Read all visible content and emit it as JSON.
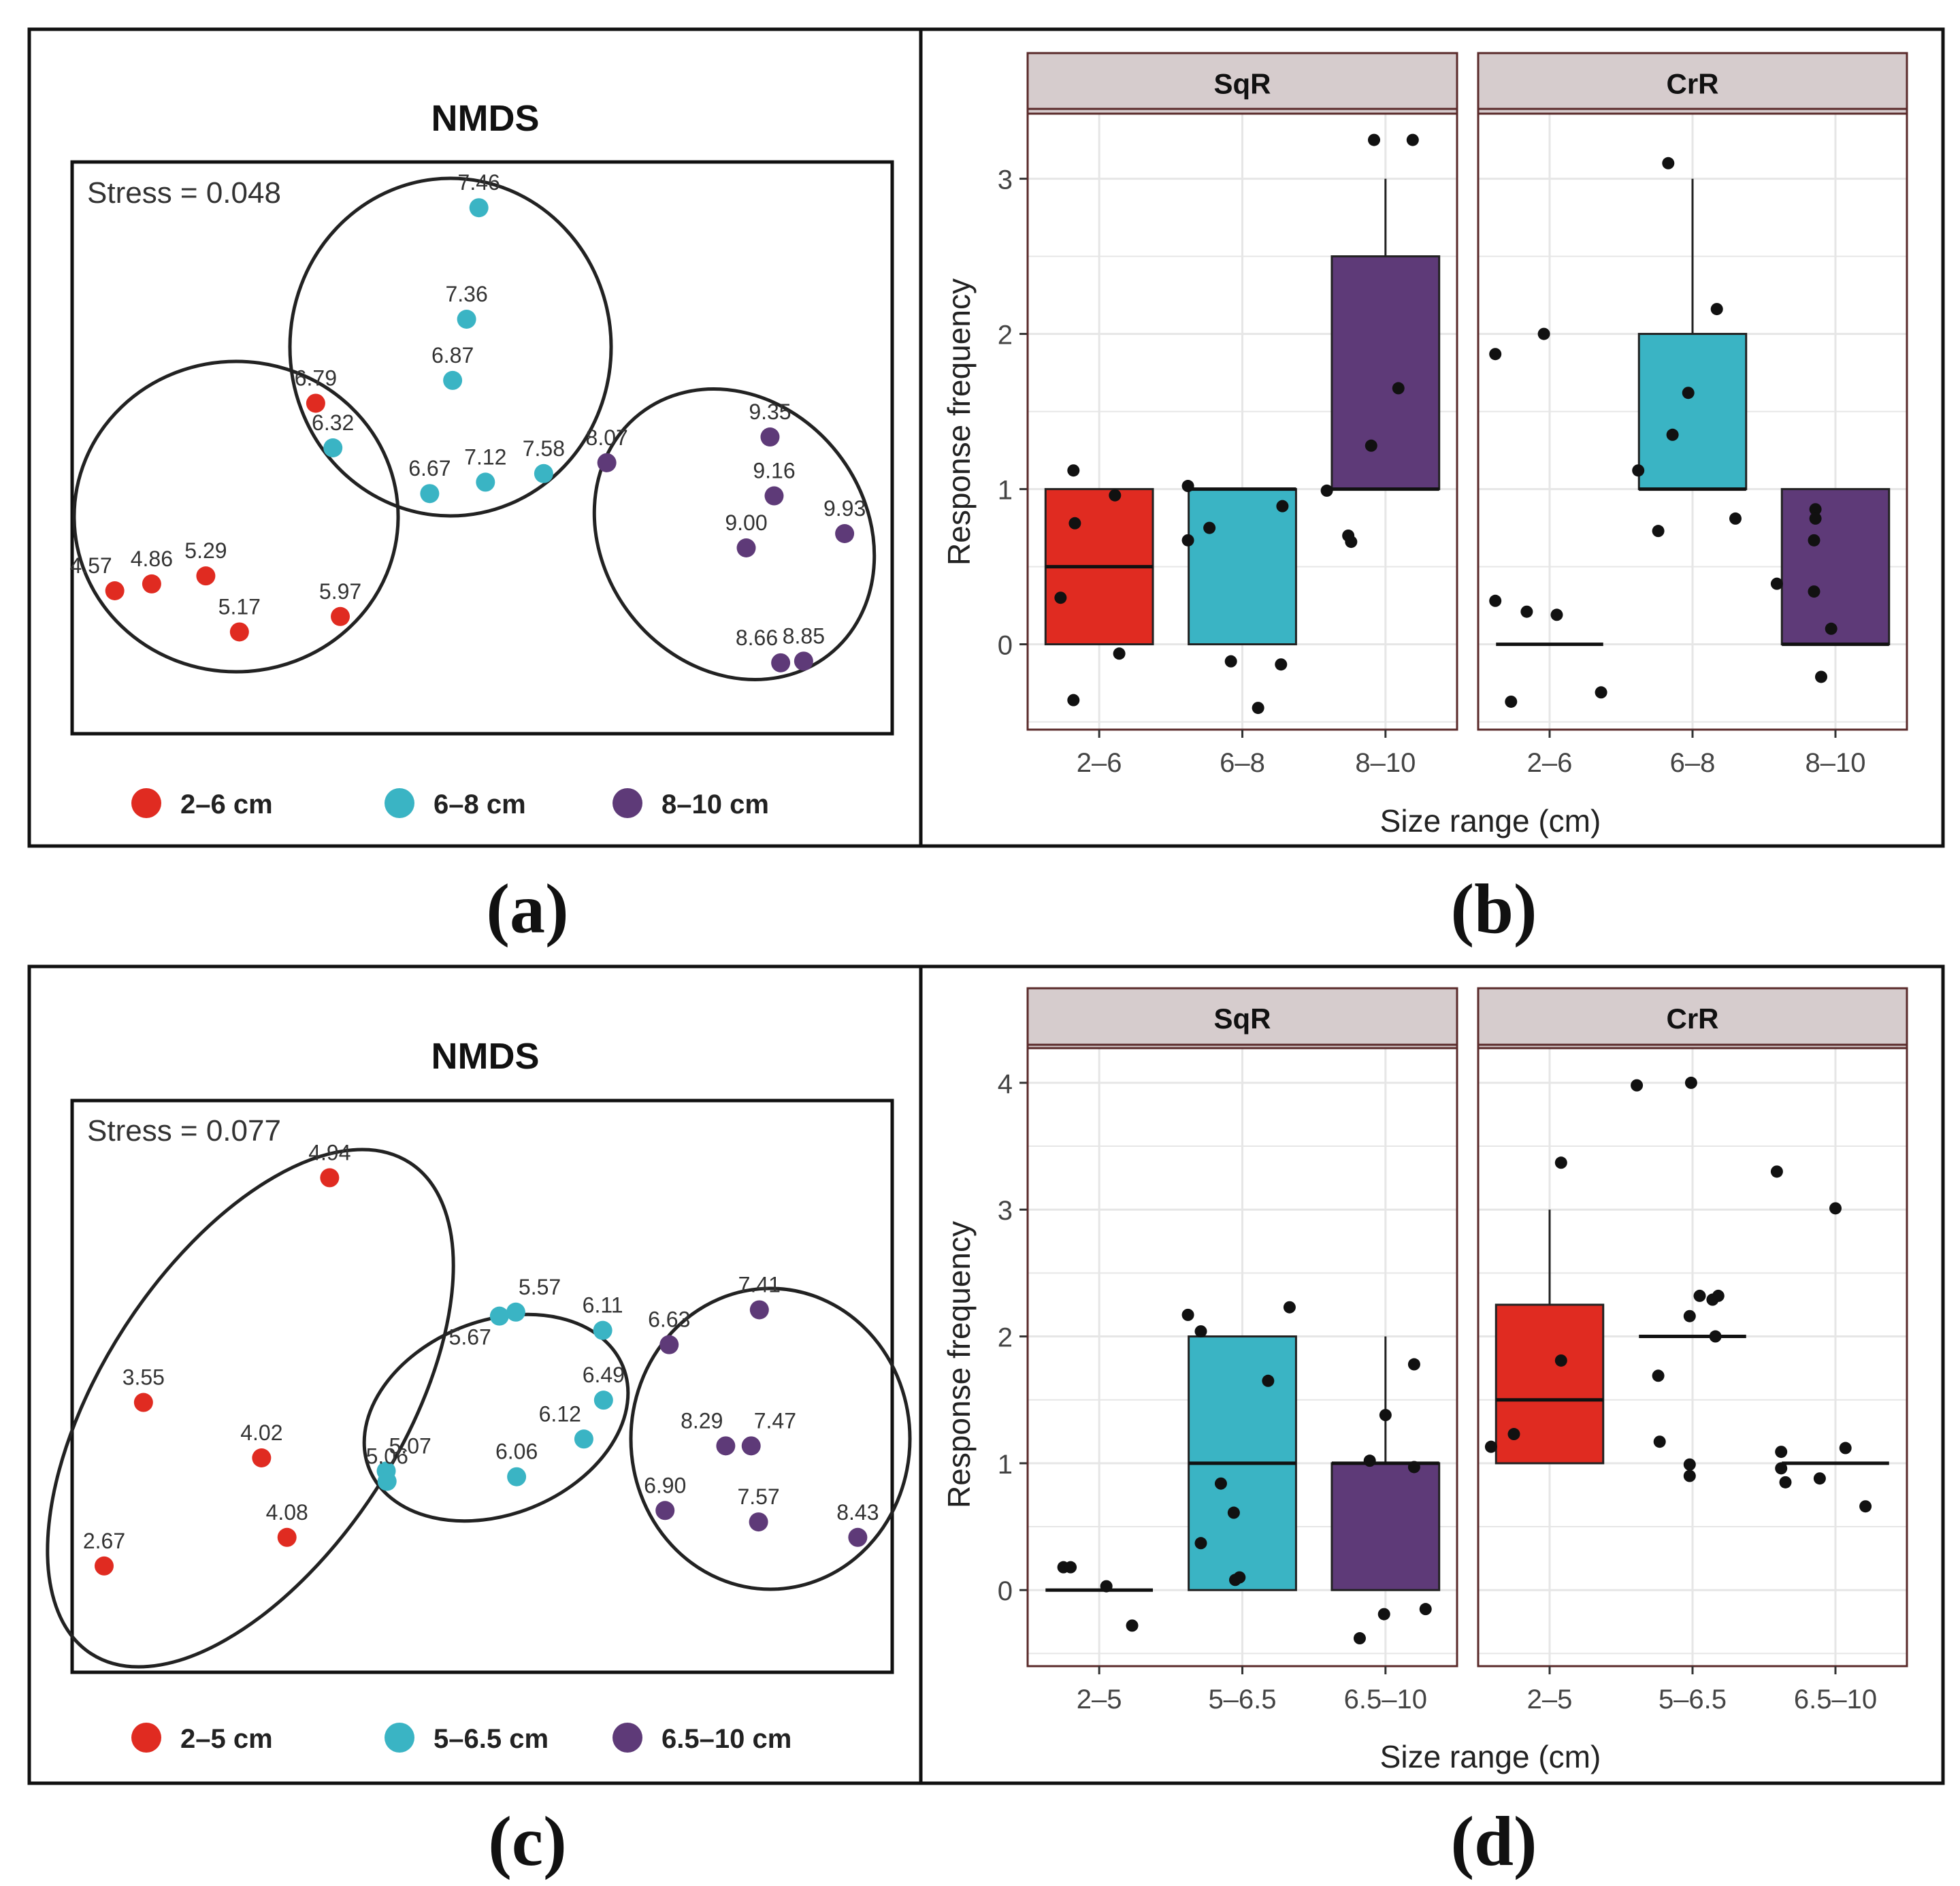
{
  "colors": {
    "red": "#e02b21",
    "cyan": "#3ab4c4",
    "purple": "#5e3a78",
    "strip": "#d6cccd",
    "strip_border": "#5a2a2a",
    "grid": "#e6e6e6",
    "axis": "#333333"
  },
  "panels": [
    {
      "key": "a",
      "caption": "(a)"
    },
    {
      "key": "b",
      "caption": "(b)"
    },
    {
      "key": "c",
      "caption": "(c)"
    },
    {
      "key": "d",
      "caption": "(d)"
    }
  ],
  "chart_data": [
    {
      "panel": "a",
      "type": "scatter",
      "title": "NMDS",
      "stress": "Stress = 0.048",
      "legend": [
        {
          "label": "2–6 cm",
          "color": "red"
        },
        {
          "label": "6–8 cm",
          "color": "cyan"
        },
        {
          "label": "8–10 cm",
          "color": "purple"
        }
      ],
      "points": [
        {
          "label": "4.57",
          "x": 0.052,
          "y": 0.25,
          "color": "red",
          "lpos": "tl"
        },
        {
          "label": "4.86",
          "x": 0.097,
          "y": 0.262,
          "color": "red",
          "lpos": "t"
        },
        {
          "label": "5.29",
          "x": 0.163,
          "y": 0.276,
          "color": "red",
          "lpos": "t"
        },
        {
          "label": "5.17",
          "x": 0.204,
          "y": 0.178,
          "color": "red",
          "lpos": "t"
        },
        {
          "label": "5.97",
          "x": 0.327,
          "y": 0.205,
          "color": "red",
          "lpos": "t"
        },
        {
          "label": "6.79",
          "x": 0.297,
          "y": 0.578,
          "color": "red",
          "lpos": "t"
        },
        {
          "label": "6.32",
          "x": 0.318,
          "y": 0.5,
          "color": "cyan",
          "lpos": "t"
        },
        {
          "label": "7.46",
          "x": 0.496,
          "y": 0.92,
          "color": "cyan",
          "lpos": "t"
        },
        {
          "label": "7.36",
          "x": 0.481,
          "y": 0.725,
          "color": "cyan",
          "lpos": "t"
        },
        {
          "label": "6.87",
          "x": 0.464,
          "y": 0.618,
          "color": "cyan",
          "lpos": "t"
        },
        {
          "label": "6.67",
          "x": 0.436,
          "y": 0.42,
          "color": "cyan",
          "lpos": "t"
        },
        {
          "label": "7.12",
          "x": 0.504,
          "y": 0.44,
          "color": "cyan",
          "lpos": "t"
        },
        {
          "label": "7.58",
          "x": 0.575,
          "y": 0.455,
          "color": "cyan",
          "lpos": "t"
        },
        {
          "label": "8.07",
          "x": 0.652,
          "y": 0.474,
          "color": "purple",
          "lpos": "t"
        },
        {
          "label": "9.35",
          "x": 0.851,
          "y": 0.519,
          "color": "purple",
          "lpos": "t"
        },
        {
          "label": "9.16",
          "x": 0.856,
          "y": 0.416,
          "color": "purple",
          "lpos": "t"
        },
        {
          "label": "9.00",
          "x": 0.822,
          "y": 0.325,
          "color": "purple",
          "lpos": "t"
        },
        {
          "label": "9.93",
          "x": 0.942,
          "y": 0.35,
          "color": "purple",
          "lpos": "t"
        },
        {
          "label": "8.66",
          "x": 0.864,
          "y": 0.124,
          "color": "purple",
          "lpos": "tl"
        },
        {
          "label": "8.85",
          "x": 0.892,
          "y": 0.127,
          "color": "purple",
          "lpos": "t"
        }
      ]
    },
    {
      "panel": "b",
      "type": "box",
      "ylabel": "Response frequency",
      "xlabel": "Size range (cm)",
      "ylim": [
        -0.55,
        3.45
      ],
      "yticks": [
        0,
        1,
        2,
        3
      ],
      "facets": [
        {
          "name": "SqR",
          "categories": [
            "2–6",
            "6–8",
            "8–10"
          ],
          "boxes": [
            {
              "q1": 0,
              "median": 0.5,
              "q3": 1,
              "whisker_low": 0,
              "whisker_high": 1,
              "color": "red"
            },
            {
              "q1": 0,
              "median": 1,
              "q3": 1,
              "whisker_low": 0,
              "whisker_high": 1,
              "color": "cyan"
            },
            {
              "q1": 1,
              "median": 1,
              "q3": 2.5,
              "whisker_low": 1,
              "whisker_high": 3,
              "color": "purple"
            }
          ],
          "points": [
            [
              [
                -0.18,
                1.12
              ],
              [
                -0.17,
                0.78
              ],
              [
                0.11,
                0.96
              ],
              [
                -0.27,
                0.3
              ],
              [
                0.14,
                -0.06
              ],
              [
                -0.18,
                -0.36
              ]
            ],
            [
              [
                -0.38,
                1.02
              ],
              [
                -0.38,
                0.67
              ],
              [
                -0.23,
                0.75
              ],
              [
                0.28,
                0.89
              ],
              [
                -0.08,
                -0.11
              ],
              [
                0.27,
                -0.13
              ],
              [
                0.11,
                -0.41
              ]
            ],
            [
              [
                -0.41,
                0.99
              ],
              [
                -0.26,
                0.7
              ],
              [
                -0.24,
                0.66
              ],
              [
                -0.1,
                1.28
              ],
              [
                0.09,
                1.65
              ],
              [
                -0.08,
                3.25
              ],
              [
                0.19,
                3.25
              ]
            ]
          ]
        },
        {
          "name": "CrR",
          "categories": [
            "2–6",
            "6–8",
            "8–10"
          ],
          "boxes": [
            {
              "q1": 0,
              "median": 0,
              "q3": 0,
              "whisker_low": 0,
              "whisker_high": 0,
              "color": "red"
            },
            {
              "q1": 1,
              "median": 1,
              "q3": 2,
              "whisker_low": 1,
              "whisker_high": 3,
              "color": "cyan"
            },
            {
              "q1": 0,
              "median": 0,
              "q3": 1,
              "whisker_low": 0,
              "whisker_high": 1,
              "color": "purple"
            }
          ],
          "points": [
            [
              [
                -0.38,
                1.87
              ],
              [
                -0.04,
                2.0
              ],
              [
                -0.38,
                0.28
              ],
              [
                -0.16,
                0.21
              ],
              [
                0.05,
                0.19
              ],
              [
                -0.27,
                -0.37
              ],
              [
                0.36,
                -0.31
              ]
            ],
            [
              [
                -0.38,
                1.12
              ],
              [
                -0.17,
                3.1
              ],
              [
                0.17,
                2.16
              ],
              [
                -0.03,
                1.62
              ],
              [
                -0.14,
                1.35
              ],
              [
                -0.24,
                0.73
              ],
              [
                0.3,
                0.81
              ]
            ],
            [
              [
                -0.41,
                0.39
              ],
              [
                -0.14,
                0.87
              ],
              [
                -0.14,
                0.81
              ],
              [
                -0.15,
                0.67
              ],
              [
                -0.15,
                0.34
              ],
              [
                -0.03,
                0.1
              ],
              [
                -0.1,
                -0.21
              ]
            ]
          ]
        }
      ]
    },
    {
      "panel": "c",
      "type": "scatter",
      "title": "NMDS",
      "stress": "Stress = 0.077",
      "legend": [
        {
          "label": "2–5 cm",
          "color": "red"
        },
        {
          "label": "5–6.5 cm",
          "color": "cyan"
        },
        {
          "label": "6.5–10 cm",
          "color": "purple"
        }
      ],
      "points": [
        {
          "label": "4.94",
          "x": 0.314,
          "y": 0.865,
          "color": "red",
          "lpos": "t"
        },
        {
          "label": "3.55",
          "x": 0.087,
          "y": 0.472,
          "color": "red",
          "lpos": "t"
        },
        {
          "label": "4.02",
          "x": 0.231,
          "y": 0.375,
          "color": "red",
          "lpos": "t"
        },
        {
          "label": "4.08",
          "x": 0.262,
          "y": 0.236,
          "color": "red",
          "lpos": "t"
        },
        {
          "label": "2.67",
          "x": 0.039,
          "y": 0.186,
          "color": "red",
          "lpos": "t"
        },
        {
          "label": "5.57",
          "x": 0.541,
          "y": 0.63,
          "color": "cyan",
          "lpos": "tr"
        },
        {
          "label": "5.67",
          "x": 0.521,
          "y": 0.623,
          "color": "cyan",
          "lpos": "bl"
        },
        {
          "label": "6.11",
          "x": 0.647,
          "y": 0.598,
          "color": "cyan",
          "lpos": "t"
        },
        {
          "label": "6.49",
          "x": 0.648,
          "y": 0.476,
          "color": "cyan",
          "lpos": "t"
        },
        {
          "label": "6.12",
          "x": 0.624,
          "y": 0.408,
          "color": "cyan",
          "lpos": "tl"
        },
        {
          "label": "6.06",
          "x": 0.542,
          "y": 0.342,
          "color": "cyan",
          "lpos": "t"
        },
        {
          "label": "5.07",
          "x": 0.383,
          "y": 0.352,
          "color": "cyan",
          "lpos": "tr"
        },
        {
          "label": "5.06",
          "x": 0.384,
          "y": 0.334,
          "color": "cyan",
          "lpos": "t"
        },
        {
          "label": "6.63",
          "x": 0.728,
          "y": 0.573,
          "color": "purple",
          "lpos": "t"
        },
        {
          "label": "7.41",
          "x": 0.838,
          "y": 0.634,
          "color": "purple",
          "lpos": "t"
        },
        {
          "label": "8.29",
          "x": 0.797,
          "y": 0.396,
          "color": "purple",
          "lpos": "tl"
        },
        {
          "label": "7.47",
          "x": 0.828,
          "y": 0.396,
          "color": "purple",
          "lpos": "tr"
        },
        {
          "label": "6.90",
          "x": 0.723,
          "y": 0.283,
          "color": "purple",
          "lpos": "t"
        },
        {
          "label": "7.57",
          "x": 0.837,
          "y": 0.263,
          "color": "purple",
          "lpos": "t"
        },
        {
          "label": "8.43",
          "x": 0.958,
          "y": 0.236,
          "color": "purple",
          "lpos": "t"
        }
      ]
    },
    {
      "panel": "d",
      "type": "box",
      "ylabel": "Response frequency",
      "xlabel": "Size range (cm)",
      "ylim": [
        -0.6,
        4.3
      ],
      "yticks": [
        0,
        1,
        2,
        3,
        4
      ],
      "facets": [
        {
          "name": "SqR",
          "categories": [
            "2–5",
            "5–6.5",
            "6.5–10"
          ],
          "boxes": [
            {
              "q1": 0,
              "median": 0,
              "q3": 0,
              "whisker_low": 0,
              "whisker_high": 0,
              "color": "red"
            },
            {
              "q1": 0,
              "median": 1,
              "q3": 2,
              "whisker_low": 0,
              "whisker_high": 2,
              "color": "cyan"
            },
            {
              "q1": 0,
              "median": 1,
              "q3": 1,
              "whisker_low": 0,
              "whisker_high": 2,
              "color": "purple"
            }
          ],
          "points": [
            [
              [
                -0.25,
                0.18
              ],
              [
                -0.2,
                0.18
              ],
              [
                0.05,
                0.03
              ],
              [
                0.23,
                -0.28
              ]
            ],
            [
              [
                -0.38,
                2.17
              ],
              [
                -0.29,
                2.04
              ],
              [
                0.18,
                1.65
              ],
              [
                0.33,
                2.23
              ],
              [
                -0.15,
                0.84
              ],
              [
                -0.06,
                0.61
              ],
              [
                -0.29,
                0.37
              ],
              [
                -0.02,
                0.1
              ],
              [
                -0.05,
                0.08
              ]
            ],
            [
              [
                -0.11,
                1.02
              ],
              [
                0.0,
                1.38
              ],
              [
                0.2,
                1.78
              ],
              [
                0.2,
                0.97
              ],
              [
                -0.01,
                -0.19
              ],
              [
                0.28,
                -0.15
              ],
              [
                -0.18,
                -0.38
              ]
            ]
          ]
        },
        {
          "name": "CrR",
          "categories": [
            "2–5",
            "5–6.5",
            "6.5–10"
          ],
          "boxes": [
            {
              "q1": 1,
              "median": 1.5,
              "q3": 2.25,
              "whisker_low": 1,
              "whisker_high": 3,
              "color": "red"
            },
            {
              "q1": 2,
              "median": 2,
              "q3": 2,
              "whisker_low": 2,
              "whisker_high": 2,
              "color": "none"
            },
            {
              "q1": 1,
              "median": 1,
              "q3": 1,
              "whisker_low": 1,
              "whisker_high": 1,
              "color": "none"
            }
          ],
          "points": [
            [
              [
                -0.41,
                1.13
              ],
              [
                -0.25,
                1.23
              ],
              [
                0.08,
                1.81
              ],
              [
                0.08,
                3.37
              ]
            ],
            [
              [
                -0.39,
                3.98
              ],
              [
                -0.01,
                4.0
              ],
              [
                -0.24,
                1.69
              ],
              [
                -0.23,
                1.17
              ],
              [
                -0.02,
                0.99
              ],
              [
                -0.02,
                0.9
              ],
              [
                -0.02,
                2.16
              ],
              [
                0.05,
                2.32
              ],
              [
                0.14,
                2.29
              ],
              [
                0.18,
                2.32
              ],
              [
                0.16,
                2.0
              ]
            ],
            [
              [
                -0.41,
                3.3
              ],
              [
                0.0,
                3.01
              ],
              [
                -0.38,
                1.09
              ],
              [
                -0.38,
                0.96
              ],
              [
                -0.35,
                0.85
              ],
              [
                -0.11,
                0.88
              ],
              [
                0.07,
                1.12
              ],
              [
                0.21,
                0.66
              ]
            ]
          ]
        }
      ]
    }
  ]
}
